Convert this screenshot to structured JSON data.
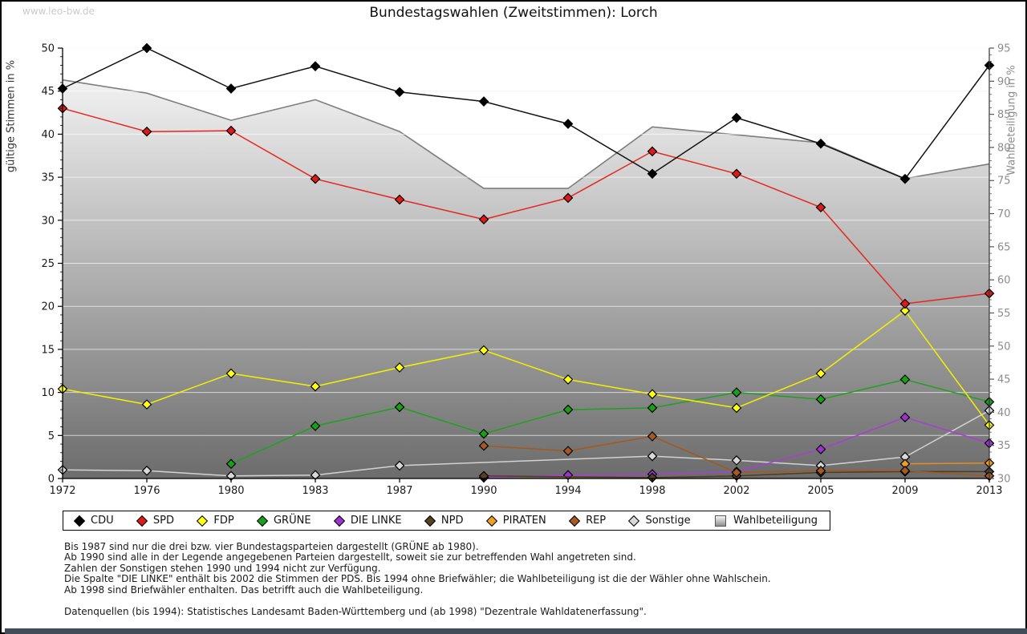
{
  "page": {
    "watermark": "www.leo-bw.de",
    "title": "Bundestagswahlen (Zweitstimmen): Lorch",
    "bottom_bar_color": "#424c58"
  },
  "chart_data": {
    "type": "line",
    "title": "Bundestagswahlen (Zweitstimmen): Lorch",
    "x_categories": [
      "1972",
      "1976",
      "1980",
      "1983",
      "1987",
      "1990",
      "1994",
      "1998",
      "2002",
      "2005",
      "2009",
      "2013"
    ],
    "y_left": {
      "label": "gültige Stimmen in %",
      "min": 0,
      "max": 50,
      "tick_step": 5,
      "tick_labels": [
        "0",
        "5",
        "10",
        "15",
        "20",
        "25",
        "30",
        "35",
        "40",
        "45",
        "50"
      ]
    },
    "y_right": {
      "label": "Wahlbeteiligung in %",
      "min": 30,
      "max": 95,
      "tick_step": 5,
      "tick_labels": [
        "30",
        "35",
        "40",
        "45",
        "50",
        "55",
        "60",
        "65",
        "70",
        "75",
        "80",
        "85",
        "90",
        "95"
      ]
    },
    "grid": true,
    "legend_position": "bottom",
    "series": [
      {
        "name": "CDU",
        "axis": "left",
        "style": "line",
        "color_line": "#111111",
        "color_marker": "#000000",
        "values": [
          45.3,
          50.0,
          45.3,
          47.9,
          44.9,
          43.8,
          41.2,
          35.4,
          41.9,
          38.9,
          34.8,
          48.0
        ]
      },
      {
        "name": "SPD",
        "axis": "left",
        "style": "line",
        "color_line": "#e52620",
        "color_marker": "#dd1a1a",
        "values": [
          43.0,
          40.3,
          40.4,
          34.8,
          32.4,
          30.1,
          32.6,
          38.0,
          35.4,
          31.5,
          20.3,
          21.5
        ]
      },
      {
        "name": "FDP",
        "axis": "left",
        "style": "line",
        "color_line": "#f2f200",
        "color_marker": "#ffff14",
        "values": [
          10.4,
          8.6,
          12.2,
          10.7,
          12.9,
          14.9,
          11.5,
          9.8,
          8.2,
          12.2,
          19.5,
          6.2
        ]
      },
      {
        "name": "GRÜNE",
        "axis": "left",
        "style": "line",
        "color_line": "#1fa11f",
        "color_marker": "#18a018",
        "values": [
          null,
          null,
          1.7,
          6.1,
          8.3,
          5.2,
          8.0,
          8.2,
          10.0,
          9.2,
          11.5,
          8.9
        ]
      },
      {
        "name": "DIE LINKE",
        "axis": "left",
        "style": "line",
        "color_line": "#a93fd4",
        "color_marker": "#9c34cc",
        "values": [
          null,
          null,
          null,
          null,
          null,
          0.1,
          0.4,
          0.5,
          0.8,
          3.4,
          7.1,
          4.1
        ]
      },
      {
        "name": "NPD",
        "axis": "left",
        "style": "line",
        "color_line": "#4f3d1e",
        "color_marker": "#554123",
        "values": [
          null,
          null,
          null,
          null,
          null,
          0.3,
          null,
          0.1,
          0.3,
          0.7,
          0.8,
          0.8
        ]
      },
      {
        "name": "PIRATEN",
        "axis": "left",
        "style": "line",
        "color_line": "#e98c1e",
        "color_marker": "#efa023",
        "values": [
          null,
          null,
          null,
          null,
          null,
          null,
          null,
          null,
          null,
          null,
          1.7,
          1.8
        ]
      },
      {
        "name": "REP",
        "axis": "left",
        "style": "line",
        "color_line": "#a2591f",
        "color_marker": "#a55a22",
        "values": [
          null,
          null,
          null,
          null,
          null,
          3.8,
          3.2,
          4.9,
          0.7,
          0.9,
          0.9,
          0.3
        ]
      },
      {
        "name": "Sonstige",
        "axis": "left",
        "style": "line",
        "color_line": "#d2d2d2",
        "color_marker": "#d8d8d8",
        "values": [
          1.0,
          0.9,
          0.3,
          0.4,
          1.5,
          null,
          null,
          2.6,
          2.1,
          1.5,
          2.5,
          7.9
        ]
      },
      {
        "name": "Wahlbeteiligung",
        "axis": "right",
        "style": "area",
        "color_line": "#7e7e7e",
        "fill_top": "#fcfcfc",
        "fill_bottom": "#6c6c6c",
        "values": [
          90.2,
          88.2,
          84.1,
          87.2,
          82.4,
          73.8,
          73.8,
          83.1,
          81.9,
          80.7,
          75.3,
          77.5
        ]
      }
    ],
    "notes": [
      "Bis 1987 sind nur die drei bzw. vier Bundestagsparteien dargestellt (GRÜNE ab 1980).",
      "Ab 1990 sind alle in der Legende angegebenen Parteien dargestellt, soweit sie zur betreffenden Wahl angetreten sind.",
      "Zahlen der Sonstigen stehen 1990 und 1994 nicht zur Verfügung.",
      "Die Spalte \"DIE LINKE\" enthält bis 2002 die Stimmen der PDS. Bis 1994 ohne Briefwähler; die Wahlbeteiligung ist die der Wähler ohne Wahlschein.",
      "Ab 1998 sind Briefwähler enthalten. Das betrifft auch die Wahlbeteiligung."
    ],
    "source": "Datenquellen (bis 1994): Statistisches Landesamt Baden-Württemberg und (ab 1998) \"Dezentrale Wahldatenerfassung\"."
  }
}
